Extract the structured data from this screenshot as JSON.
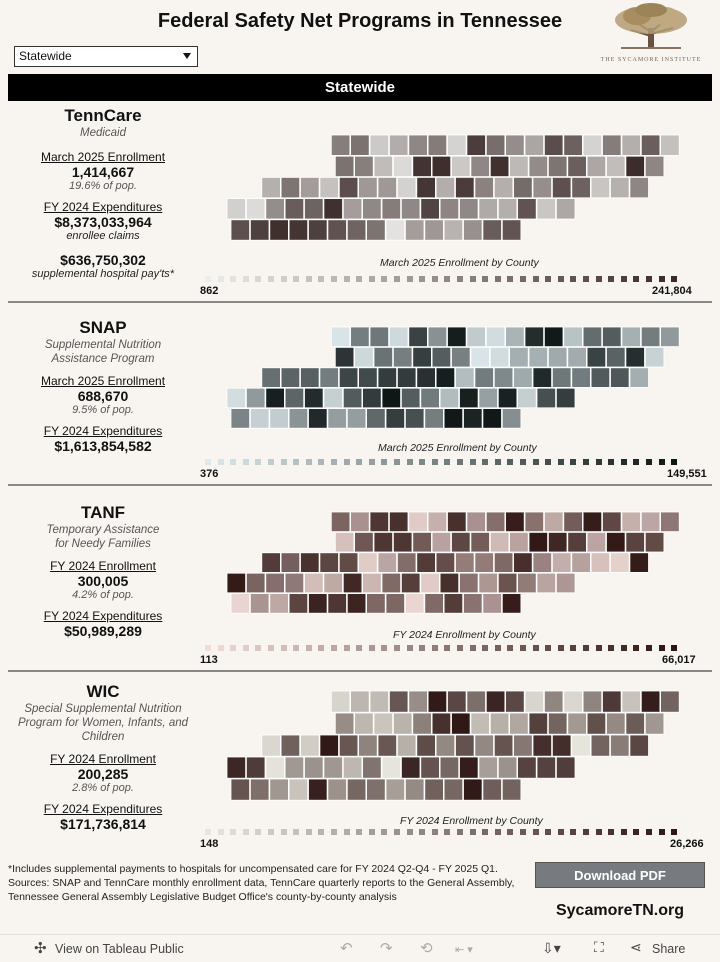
{
  "title": "Federal Safety Net Programs in Tennessee",
  "filter": {
    "selected": "Statewide"
  },
  "logo": {
    "text": "THE SYCAMORE INSTITUTE"
  },
  "banner": "Statewide",
  "sections": [
    {
      "name": "TennCare",
      "subtitle": [
        "Medicaid"
      ],
      "enroll_label": "March 2025 Enrollment",
      "enroll_value": "1,414,667",
      "enroll_pct": "19.6% of pop.",
      "exp_label": "FY 2024 Expenditures",
      "exp_value": "$8,373,033,964",
      "exp_note": "enrollee claims",
      "extra_value": "$636,750,302",
      "extra_note": "supplemental hospital pay'ts*",
      "map_label": "March 2025 Enrollment by County",
      "legend_min": "862",
      "legend_max": "241,804",
      "palette": [
        "#ececea",
        "#3a2a28"
      ]
    },
    {
      "name": "SNAP",
      "subtitle": [
        "Supplemental Nutrition",
        "Assistance Program"
      ],
      "enroll_label": "March 2025 Enrollment",
      "enroll_value": "688,670",
      "enroll_pct": "9.5% of pop.",
      "exp_label": "FY 2024 Expenditures",
      "exp_value": "$1,613,854,582",
      "map_label": "March 2025 Enrollment by County",
      "legend_min": "376",
      "legend_max": "149,551",
      "palette": [
        "#dde9ec",
        "#0e1616"
      ]
    },
    {
      "name": "TANF",
      "subtitle": [
        "Temporary Assistance",
        "for Needy Families"
      ],
      "enroll_label": "FY 2024 Enrollment",
      "enroll_value": "300,005",
      "enroll_pct": "4.2% of pop.",
      "exp_label": "FY 2024 Expenditures",
      "exp_value": "$50,989,289",
      "map_label": "FY 2024 Enrollment by County",
      "legend_min": "113",
      "legend_max": "66,017",
      "palette": [
        "#f1dcd8",
        "#2e1512"
      ]
    },
    {
      "name": "WIC",
      "subtitle": [
        "Special Supplemental Nutrition",
        "Program for Women, Infants, and",
        "Children"
      ],
      "enroll_label": "FY 2024 Enrollment",
      "enroll_value": "200,285",
      "enroll_pct": "2.8% of pop.",
      "exp_label": "FY 2024 Expenditures",
      "exp_value": "$171,736,814",
      "map_label": "FY 2024 Enrollment by County",
      "legend_min": "148",
      "legend_max": "26,266",
      "palette": [
        "#e7e6dd",
        "#2e1614"
      ]
    }
  ],
  "footnote": {
    "line1": "*Includes supplemental payments to hospitals for uncompensated care for FY 2024 Q2-Q4 - FY 2025 Q1.",
    "line2": "Sources: SNAP and TennCare monthly enrollment data, TennCare quarterly reports to the General Assembly, Tennessee General Assembly Legislative Budget Office's county-by-county analysis"
  },
  "download_label": "Download PDF",
  "site": "SycamoreTN.org",
  "toolbar": {
    "view_label": "View on Tableau Public",
    "share_label": "Share"
  }
}
